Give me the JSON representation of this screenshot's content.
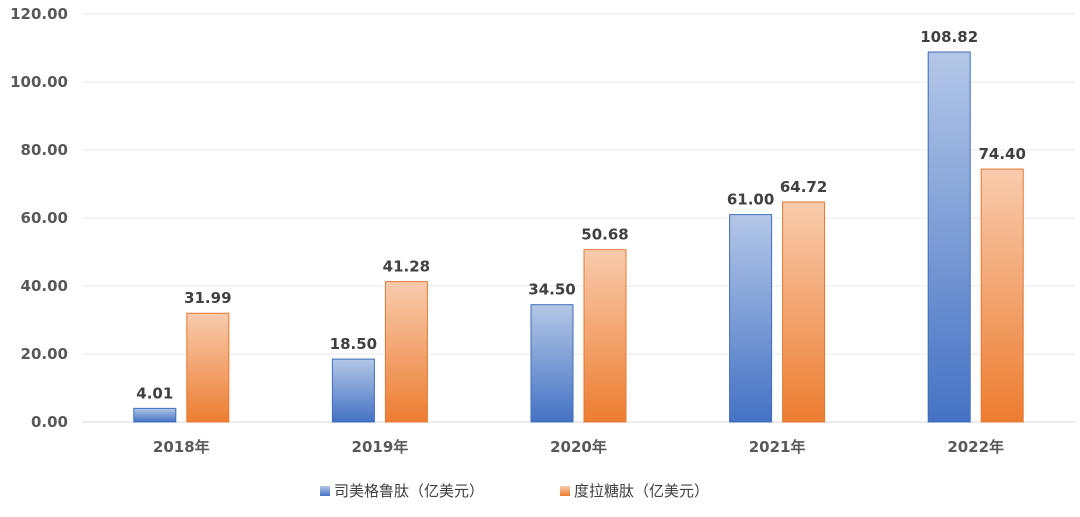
{
  "chart_data": {
    "type": "bar",
    "categories": [
      "2018年",
      "2019年",
      "2020年",
      "2021年",
      "2022年"
    ],
    "series": [
      {
        "name": "司美格鲁肽（亿美元）",
        "values": [
          4.01,
          18.5,
          34.5,
          61.0,
          108.82
        ],
        "color": "#4472C4"
      },
      {
        "name": "度拉糖肽（亿美元）",
        "values": [
          31.99,
          41.28,
          50.68,
          64.72,
          74.4
        ],
        "color": "#ED7D31"
      }
    ],
    "value_labels": [
      [
        "4.01",
        "18.50",
        "34.50",
        "61.00",
        "108.82"
      ],
      [
        "31.99",
        "41.28",
        "50.68",
        "64.72",
        "74.40"
      ]
    ],
    "y_ticks": [
      "0.00",
      "20.00",
      "40.00",
      "60.00",
      "80.00",
      "100.00",
      "120.00"
    ],
    "ylim": [
      0,
      120
    ],
    "grid": true,
    "legend_position": "bottom",
    "title": "",
    "xlabel": "",
    "ylabel": ""
  }
}
